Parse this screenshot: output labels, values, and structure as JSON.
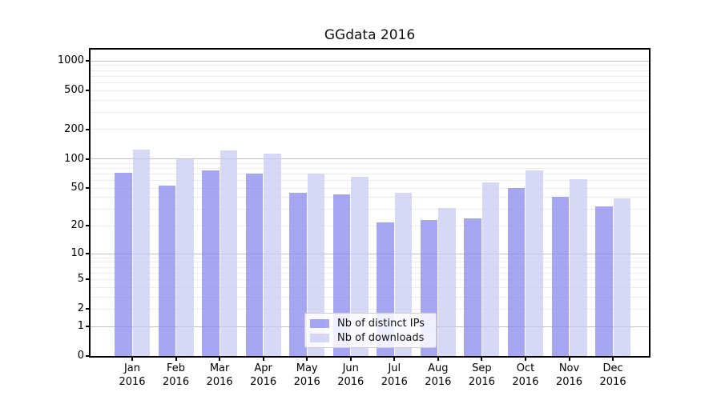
{
  "title": "GGdata 2016",
  "chart_data": {
    "type": "bar",
    "title": "GGdata 2016",
    "yscale": "log-like (position proportional to log10(value+1))",
    "ylim": [
      0,
      1300
    ],
    "yticks": [
      0,
      1,
      2,
      5,
      10,
      20,
      50,
      100,
      200,
      500,
      1000
    ],
    "grid": true,
    "legend_position": "lower center",
    "categories": [
      "Jan",
      "Feb",
      "Mar",
      "Apr",
      "May",
      "Jun",
      "Jul",
      "Aug",
      "Sep",
      "Oct",
      "Nov",
      "Dec"
    ],
    "category_year": "2016",
    "series": [
      {
        "name": "Nb of distinct IPs",
        "color": "#8383ee",
        "values": [
          72,
          53,
          76,
          70,
          45,
          43,
          22,
          23,
          24,
          50,
          41,
          32
        ]
      },
      {
        "name": "Nb of downloads",
        "color": "#c7c7f2",
        "values": [
          125,
          99,
          122,
          113,
          70,
          65,
          45,
          31,
          57,
          76,
          62,
          39
        ]
      }
    ]
  },
  "colors": {
    "axis": "#000000",
    "major_grid": "#c2c2c2",
    "minor_grid": "#ececec",
    "background": "#ffffff"
  }
}
